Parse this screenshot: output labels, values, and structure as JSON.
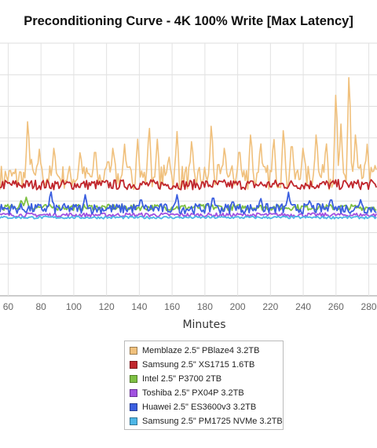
{
  "chart_data": {
    "type": "line",
    "title": "Preconditioning Curve - 4K 100% Write [Max Latency]",
    "xlabel": "Minutes",
    "ylabel": "",
    "x_ticks": [
      60,
      80,
      100,
      120,
      140,
      160,
      180,
      200,
      220,
      240,
      260,
      280
    ],
    "xlim": [
      55,
      285
    ],
    "ylim": [
      0,
      1
    ],
    "grid": true,
    "legend_position": "bottom-center",
    "series": [
      {
        "name": "Memblaze 2.5\" PBlaze4 3.2TB",
        "color": "#F0C07C",
        "base": 0.47,
        "noise": 0.05,
        "spikes": [
          [
            72,
            0.72
          ],
          [
            74,
            0.55
          ],
          [
            79,
            0.58
          ],
          [
            88,
            0.6
          ],
          [
            104,
            0.58
          ],
          [
            113,
            0.6
          ],
          [
            121,
            0.55
          ],
          [
            124,
            0.6
          ],
          [
            131,
            0.6
          ],
          [
            139,
            0.62
          ],
          [
            146,
            0.69
          ],
          [
            151,
            0.62
          ],
          [
            158,
            0.56
          ],
          [
            163,
            0.65
          ],
          [
            172,
            0.63
          ],
          [
            184,
            0.7
          ],
          [
            192,
            0.6
          ],
          [
            201,
            0.6
          ],
          [
            208,
            0.66
          ],
          [
            214,
            0.62
          ],
          [
            222,
            0.64
          ],
          [
            228,
            0.68
          ],
          [
            233,
            0.63
          ],
          [
            240,
            0.6
          ],
          [
            248,
            0.66
          ],
          [
            254,
            0.62
          ],
          [
            260,
            0.84
          ],
          [
            263,
            0.68
          ],
          [
            268,
            0.92
          ],
          [
            272,
            0.66
          ],
          [
            279,
            0.6
          ]
        ]
      },
      {
        "name": "Samsung 2.5\" XS1715 1.6TB",
        "color": "#C0262C",
        "base": 0.44,
        "noise": 0.02,
        "spikes": [
          [
            59,
            0.4
          ],
          [
            63,
            0.42
          ]
        ]
      },
      {
        "name": "Intel 2.5\" P3700 2TB",
        "color": "#7EC043",
        "base": 0.35,
        "noise": 0.012,
        "spikes": [
          [
            68,
            0.38
          ],
          [
            71,
            0.39
          ]
        ]
      },
      {
        "name": "Toshiba 2.5\" PX04P 3.2TB",
        "color": "#A151E0",
        "base": 0.32,
        "noise": 0.008,
        "spikes": []
      },
      {
        "name": "Huawei 2.5\" ES3600v3 3.2TB",
        "color": "#3B5FE0",
        "base": 0.345,
        "noise": 0.02,
        "spikes": [
          [
            86,
            0.42
          ],
          [
            107,
            0.4
          ],
          [
            141,
            0.39
          ],
          [
            163,
            0.4
          ],
          [
            185,
            0.4
          ],
          [
            197,
            0.38
          ],
          [
            214,
            0.39
          ],
          [
            231,
            0.41
          ],
          [
            244,
            0.38
          ],
          [
            257,
            0.39
          ],
          [
            275,
            0.38
          ]
        ]
      },
      {
        "name": "Samsung 2.5\" PM1725 NVMe 3.2TB",
        "color": "#4DB6E6",
        "base": 0.31,
        "noise": 0.005,
        "spikes": []
      }
    ]
  }
}
